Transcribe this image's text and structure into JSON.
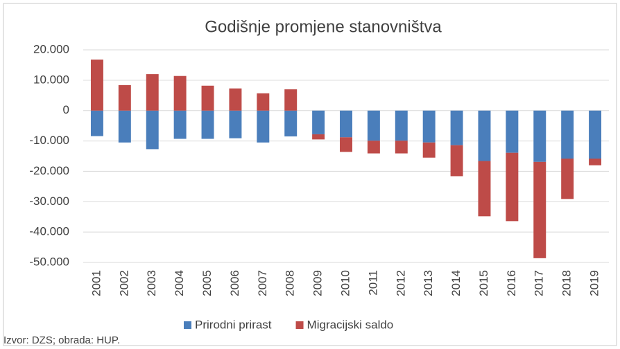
{
  "chart_data": {
    "type": "bar",
    "stacked": true,
    "title": "Godišnje promjene stanovništva",
    "categories": [
      "2001",
      "2002",
      "2003",
      "2004",
      "2005",
      "2006",
      "2007",
      "2008",
      "2009",
      "2010",
      "2011",
      "2012",
      "2013",
      "2014",
      "2015",
      "2016",
      "2017",
      "2018",
      "2019"
    ],
    "series": [
      {
        "name": "Prirodni prirast",
        "color": "#4a7ebb",
        "values": [
          -8400,
          -10500,
          -12700,
          -9300,
          -9300,
          -9100,
          -10500,
          -8500,
          -7800,
          -8800,
          -9900,
          -9900,
          -10500,
          -11400,
          -16600,
          -13900,
          -16900,
          -15800,
          -15800
        ]
      },
      {
        "name": "Migracijski saldo",
        "color": "#be4b48",
        "values": [
          16800,
          8400,
          12000,
          11400,
          8200,
          7300,
          5700,
          7000,
          -1700,
          -4800,
          -4200,
          -4200,
          -5000,
          -10200,
          -18200,
          -22500,
          -31700,
          -13300,
          -2200
        ]
      }
    ],
    "ylim": [
      -50000,
      20000
    ],
    "yticks": [
      {
        "value": -50000,
        "label": "-50.000"
      },
      {
        "value": -40000,
        "label": "-40.000"
      },
      {
        "value": -30000,
        "label": "-30.000"
      },
      {
        "value": -20000,
        "label": "-20.000"
      },
      {
        "value": -10000,
        "label": "-10.000"
      },
      0,
      {
        "value": 10000,
        "label": "10.000"
      },
      {
        "value": 20000,
        "label": "20.000"
      }
    ],
    "grid": true,
    "legend": "bottom",
    "source": "Izvor: DZS; obrada: HUP."
  }
}
